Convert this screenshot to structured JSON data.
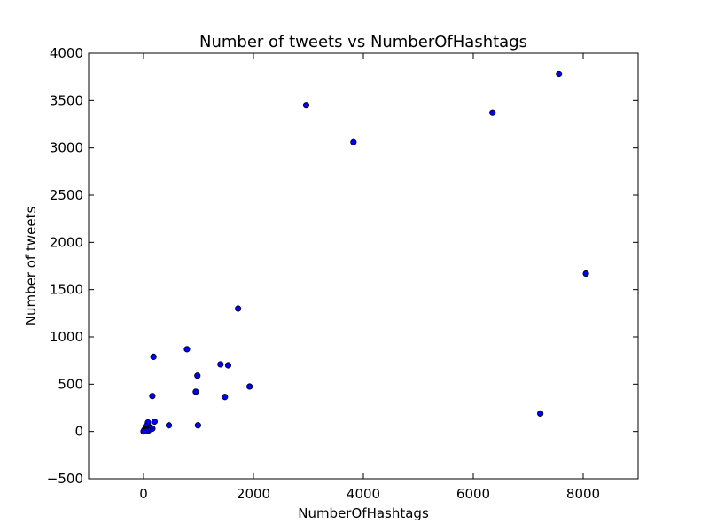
{
  "chart_data": {
    "type": "scatter",
    "title": "Number of tweets vs NumberOfHashtags",
    "xlabel": "NumberOfHashtags",
    "ylabel": "Number of tweets",
    "xlim": [
      -1000,
      9000
    ],
    "ylim": [
      -500,
      4000
    ],
    "xticks": [
      0,
      2000,
      4000,
      6000,
      8000
    ],
    "xtick_labels": [
      "0",
      "2000",
      "4000",
      "6000",
      "8000"
    ],
    "yticks": [
      -500,
      0,
      500,
      1000,
      1500,
      2000,
      2500,
      3000,
      3500,
      4000
    ],
    "ytick_labels": [
      "−500",
      "0",
      "500",
      "1000",
      "1500",
      "2000",
      "2500",
      "3000",
      "3500",
      "4000"
    ],
    "grid": false,
    "marker_color": "#0000ff",
    "points": [
      {
        "x": 7560,
        "y": 3780
      },
      {
        "x": 2960,
        "y": 3450
      },
      {
        "x": 6350,
        "y": 3370
      },
      {
        "x": 3820,
        "y": 3060
      },
      {
        "x": 8050,
        "y": 1670
      },
      {
        "x": 1720,
        "y": 1300
      },
      {
        "x": 790,
        "y": 870
      },
      {
        "x": 180,
        "y": 790
      },
      {
        "x": 1400,
        "y": 710
      },
      {
        "x": 1540,
        "y": 700
      },
      {
        "x": 980,
        "y": 590
      },
      {
        "x": 1930,
        "y": 475
      },
      {
        "x": 950,
        "y": 420
      },
      {
        "x": 160,
        "y": 375
      },
      {
        "x": 1480,
        "y": 365
      },
      {
        "x": 7220,
        "y": 190
      },
      {
        "x": 200,
        "y": 105
      },
      {
        "x": 80,
        "y": 95
      },
      {
        "x": 460,
        "y": 65
      },
      {
        "x": 990,
        "y": 65
      },
      {
        "x": 40,
        "y": 55
      },
      {
        "x": 130,
        "y": 40
      },
      {
        "x": 160,
        "y": 30
      },
      {
        "x": 110,
        "y": 25
      },
      {
        "x": 60,
        "y": 20
      },
      {
        "x": 20,
        "y": 20
      },
      {
        "x": 90,
        "y": 10
      },
      {
        "x": 10,
        "y": 10
      },
      {
        "x": 30,
        "y": 5
      },
      {
        "x": 5,
        "y": 2
      },
      {
        "x": 50,
        "y": 3
      },
      {
        "x": 0,
        "y": 0
      }
    ]
  }
}
